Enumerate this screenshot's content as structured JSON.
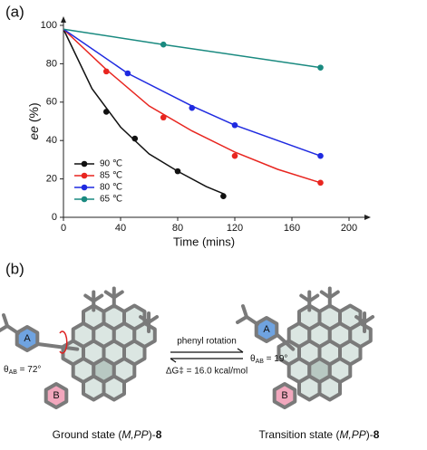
{
  "chart_data": {
    "type": "scatter",
    "panel_label": "(a)",
    "xlabel": "Time (mins)",
    "ylabel_parts": [
      "ee",
      " (%)"
    ],
    "xlim": [
      0,
      200
    ],
    "xticks": [
      0,
      40,
      80,
      120,
      160,
      200
    ],
    "ylim": [
      0,
      100
    ],
    "yticks": [
      0,
      20,
      40,
      60,
      80,
      100
    ],
    "legend": "upper-left-inside",
    "series": [
      {
        "name": "90 ℃",
        "color": "#111111",
        "x": [
          30,
          50,
          80,
          112
        ],
        "values": [
          55,
          41,
          24,
          11
        ],
        "fit": {
          "x": [
            0,
            20,
            40,
            60,
            80,
            100,
            113
          ],
          "values": [
            98,
            67,
            47,
            33,
            24,
            16,
            12
          ]
        }
      },
      {
        "name": "85 ℃",
        "color": "#e8251f",
        "x": [
          30,
          70,
          120,
          180
        ],
        "values": [
          76,
          52,
          32,
          18
        ],
        "fit": {
          "x": [
            0,
            30,
            60,
            90,
            120,
            150,
            180
          ],
          "values": [
            98,
            77,
            58,
            45,
            34,
            25,
            18
          ]
        }
      },
      {
        "name": "80 ℃",
        "color": "#1f2ae0",
        "x": [
          45,
          90,
          120,
          180
        ],
        "values": [
          75,
          57,
          48,
          32
        ],
        "fit": {
          "x": [
            0,
            45,
            90,
            120,
            150,
            180
          ],
          "values": [
            98,
            75,
            58,
            48,
            40,
            32
          ]
        }
      },
      {
        "name": "65 ℃",
        "color": "#1a8a80",
        "x": [
          70,
          180
        ],
        "values": [
          90,
          78
        ],
        "fit": {
          "x": [
            0,
            70,
            180
          ],
          "values": [
            98,
            90,
            78
          ]
        }
      }
    ]
  },
  "diagram": {
    "panel_label": "(b)",
    "arrow_top": "phenyl rotation",
    "arrow_bottom": "ΔG‡ = 16.0 kcal/mol",
    "ground": {
      "ring_a": "A",
      "ring_b": "B",
      "theta": [
        "θ",
        "AB",
        " = 72°"
      ],
      "caption": [
        "Ground state (",
        "M,PP",
        ")-",
        "8"
      ]
    },
    "transition": {
      "ring_a": "A",
      "ring_b": "B",
      "theta": [
        "θ",
        "AB",
        " = 19°"
      ],
      "caption": [
        "Transition state (",
        "M,PP",
        ")-",
        "8"
      ]
    }
  }
}
